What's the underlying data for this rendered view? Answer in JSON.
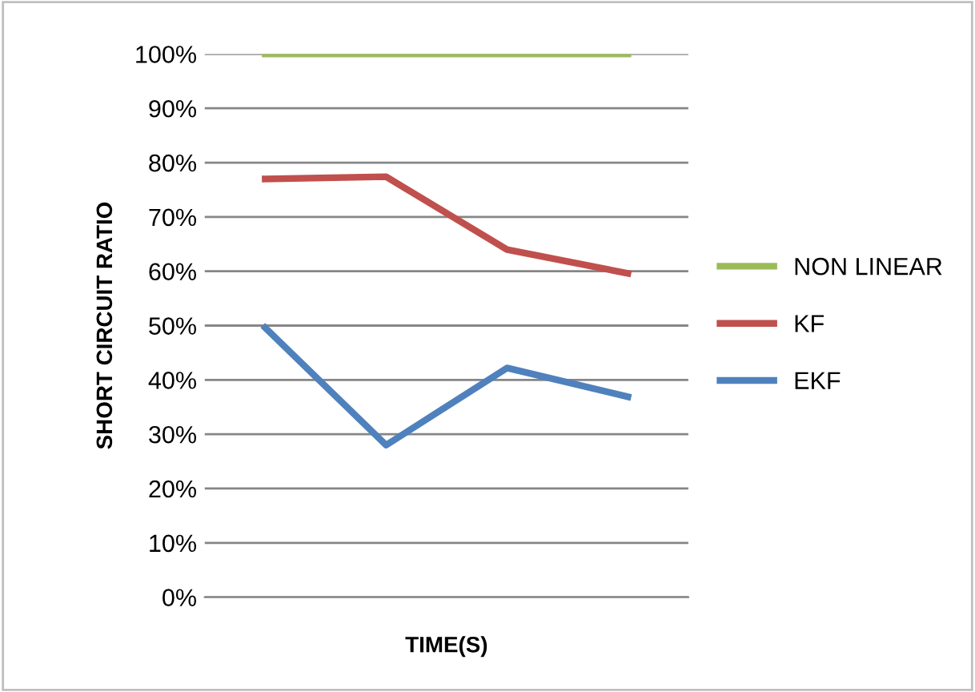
{
  "chart_data": {
    "type": "line",
    "xlabel": "TIME(S)",
    "ylabel": "SHORT CIRCUIT RATIO",
    "categories": [
      null,
      null,
      null,
      null
    ],
    "series": [
      {
        "name": "NON LINEAR",
        "color": "#9bbb59",
        "values": [
          100,
          100,
          100,
          100
        ]
      },
      {
        "name": "KF",
        "color": "#c0504d",
        "values": [
          77,
          77.4,
          64,
          59.6
        ]
      },
      {
        "name": "EKF",
        "color": "#4f81bd",
        "values": [
          49.6,
          28,
          42.2,
          36.9
        ]
      }
    ],
    "ylim": [
      0,
      100
    ],
    "yticks": [
      {
        "value": 0,
        "label": "0%"
      },
      {
        "value": 10,
        "label": "10%"
      },
      {
        "value": 20,
        "label": "20%"
      },
      {
        "value": 30,
        "label": "30%"
      },
      {
        "value": 40,
        "label": "40%"
      },
      {
        "value": 50,
        "label": "50%"
      },
      {
        "value": 60,
        "label": "60%"
      },
      {
        "value": 70,
        "label": "70%"
      },
      {
        "value": 80,
        "label": "80%"
      },
      {
        "value": 90,
        "label": "90%"
      },
      {
        "value": 100,
        "label": "100%"
      }
    ],
    "grid": "y",
    "legend": "right",
    "marker": "none",
    "line_style": "solid"
  }
}
